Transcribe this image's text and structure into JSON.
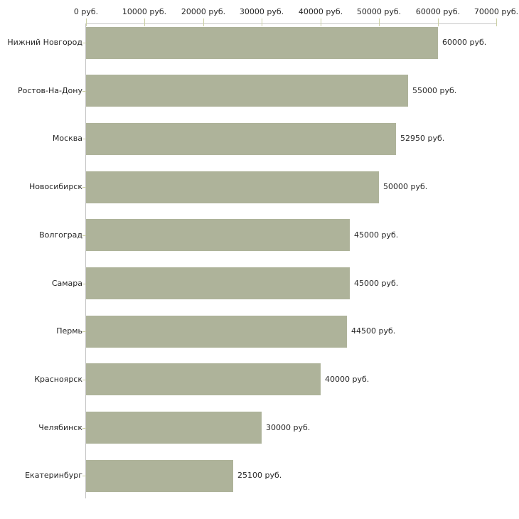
{
  "chart_data": {
    "type": "bar",
    "orientation": "horizontal",
    "title": "",
    "xlabel": "",
    "ylabel": "",
    "unit": "руб.",
    "grid": false,
    "legend": false,
    "xlim": [
      0,
      70000
    ],
    "categories": [
      "Нижний Новгород",
      "Ростов-На-Дону",
      "Москва",
      "Новосибирск",
      "Волгоград",
      "Самара",
      "Пермь",
      "Красноярск",
      "Челябинск",
      "Екатеринбург"
    ],
    "values": [
      60000,
      55000,
      52950,
      50000,
      45000,
      45000,
      44500,
      40000,
      30000,
      25100
    ],
    "value_labels": [
      "60000 руб.",
      "55000 руб.",
      "52950 руб.",
      "50000 руб.",
      "45000 руб.",
      "45000 руб.",
      "44500 руб.",
      "40000 руб.",
      "30000 руб.",
      "25100 руб."
    ],
    "x_ticks": [
      {
        "value": 0,
        "label": "0 руб."
      },
      {
        "value": 10000,
        "label": "10000 руб."
      },
      {
        "value": 20000,
        "label": "20000 руб."
      },
      {
        "value": 30000,
        "label": "30000 руб."
      },
      {
        "value": 40000,
        "label": "40000 руб."
      },
      {
        "value": 50000,
        "label": "50000 руб."
      },
      {
        "value": 60000,
        "label": "60000 руб."
      },
      {
        "value": 70000,
        "label": "70000 руб."
      }
    ],
    "colors": {
      "bar": "#aeb39a",
      "axis_line": "#c6c6c6",
      "tick_mark": "#cbd0a4",
      "text": "#262626",
      "background": "#ffffff"
    }
  }
}
